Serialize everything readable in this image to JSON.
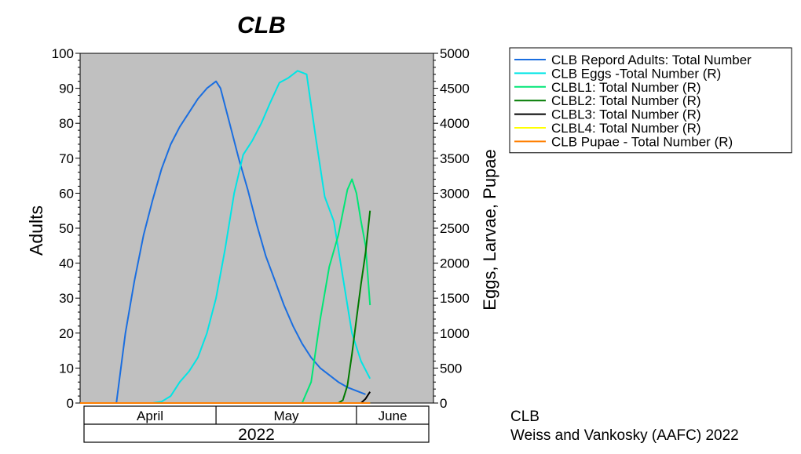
{
  "chart_data": {
    "type": "line",
    "title": "CLB",
    "ylabel_left": "Adults",
    "ylabel_right": "Eggs, Larvae, Pupae",
    "ylim_left": [
      0,
      100
    ],
    "ylim_right": [
      0,
      5000
    ],
    "yticks_left": [
      "0",
      "10",
      "20",
      "30",
      "40",
      "50",
      "60",
      "70",
      "80",
      "90",
      "100"
    ],
    "yticks_right": [
      "0",
      "500",
      "1000",
      "1500",
      "2000",
      "2500",
      "3000",
      "3500",
      "4000",
      "4500",
      "5000"
    ],
    "x_domain": [
      "2022-03-31",
      "2022-06-17"
    ],
    "month_labels": [
      {
        "label": "April",
        "start": "2022-03-31",
        "end": "2022-04-30"
      },
      {
        "label": "May",
        "start": "2022-04-30",
        "end": "2022-05-31"
      },
      {
        "label": "June",
        "start": "2022-05-31",
        "end": "2022-06-17"
      }
    ],
    "year_label": "2022",
    "grid": false,
    "legend_position": "right-top",
    "background": "#c0c0c0",
    "series": [
      {
        "name": "CLB  Repord Adults: Total Number",
        "axis": "left",
        "color": "#1a6ee0",
        "points": [
          [
            "2022-04-08",
            0
          ],
          [
            "2022-04-10",
            20
          ],
          [
            "2022-04-12",
            35
          ],
          [
            "2022-04-14",
            48
          ],
          [
            "2022-04-16",
            58
          ],
          [
            "2022-04-18",
            67
          ],
          [
            "2022-04-20",
            74
          ],
          [
            "2022-04-22",
            79
          ],
          [
            "2022-04-24",
            83
          ],
          [
            "2022-04-26",
            87
          ],
          [
            "2022-04-28",
            90
          ],
          [
            "2022-04-30",
            92
          ],
          [
            "2022-05-01",
            90
          ],
          [
            "2022-05-03",
            80
          ],
          [
            "2022-05-05",
            70
          ],
          [
            "2022-05-07",
            61
          ],
          [
            "2022-05-09",
            51
          ],
          [
            "2022-05-11",
            42
          ],
          [
            "2022-05-13",
            35
          ],
          [
            "2022-05-15",
            28
          ],
          [
            "2022-05-17",
            22
          ],
          [
            "2022-05-19",
            17
          ],
          [
            "2022-05-21",
            13
          ],
          [
            "2022-05-23",
            10
          ],
          [
            "2022-05-25",
            8
          ],
          [
            "2022-05-27",
            6
          ],
          [
            "2022-05-29",
            4.5
          ],
          [
            "2022-05-31",
            3.5
          ],
          [
            "2022-06-02",
            2.5
          ]
        ]
      },
      {
        "name": "CLB Eggs -Total Number (R)",
        "axis": "right",
        "color": "#00e5e5",
        "points": [
          [
            "2022-04-16",
            0
          ],
          [
            "2022-04-18",
            20
          ],
          [
            "2022-04-20",
            100
          ],
          [
            "2022-04-22",
            300
          ],
          [
            "2022-04-24",
            450
          ],
          [
            "2022-04-26",
            650
          ],
          [
            "2022-04-28",
            1000
          ],
          [
            "2022-04-30",
            1500
          ],
          [
            "2022-05-02",
            2200
          ],
          [
            "2022-05-04",
            3000
          ],
          [
            "2022-05-06",
            3550
          ],
          [
            "2022-05-08",
            3750
          ],
          [
            "2022-05-10",
            4000
          ],
          [
            "2022-05-12",
            4300
          ],
          [
            "2022-05-14",
            4580
          ],
          [
            "2022-05-16",
            4650
          ],
          [
            "2022-05-18",
            4750
          ],
          [
            "2022-05-20",
            4700
          ],
          [
            "2022-05-22",
            3800
          ],
          [
            "2022-05-24",
            2950
          ],
          [
            "2022-05-26",
            2600
          ],
          [
            "2022-05-28",
            1800
          ],
          [
            "2022-05-30",
            1000
          ],
          [
            "2022-06-01",
            600
          ],
          [
            "2022-06-03",
            350
          ]
        ]
      },
      {
        "name": "CLBL1: Total Number (R)",
        "axis": "right",
        "color": "#00e676",
        "points": [
          [
            "2022-05-19",
            0
          ],
          [
            "2022-05-21",
            300
          ],
          [
            "2022-05-23",
            1200
          ],
          [
            "2022-05-25",
            1950
          ],
          [
            "2022-05-27",
            2400
          ],
          [
            "2022-05-29",
            3050
          ],
          [
            "2022-05-30",
            3200
          ],
          [
            "2022-05-31",
            3000
          ],
          [
            "2022-06-01",
            2600
          ],
          [
            "2022-06-02",
            2250
          ],
          [
            "2022-06-03",
            1400
          ]
        ]
      },
      {
        "name": "CLBL2: Total Number (R)",
        "axis": "right",
        "color": "#007a00",
        "points": [
          [
            "2022-05-27",
            0
          ],
          [
            "2022-05-28",
            40
          ],
          [
            "2022-05-29",
            250
          ],
          [
            "2022-05-30",
            700
          ],
          [
            "2022-05-31",
            1200
          ],
          [
            "2022-06-01",
            1700
          ],
          [
            "2022-06-02",
            2150
          ],
          [
            "2022-06-03",
            2750
          ]
        ]
      },
      {
        "name": "CLBL3: Total Number (R)",
        "axis": "right",
        "color": "#000000",
        "points": [
          [
            "2022-06-01",
            0
          ],
          [
            "2022-06-02",
            60
          ],
          [
            "2022-06-03",
            160
          ]
        ]
      },
      {
        "name": "CLBL4: Total Number (R)",
        "axis": "right",
        "color": "#ffff00",
        "points": [
          [
            "2022-03-31",
            0
          ],
          [
            "2022-06-03",
            0
          ]
        ]
      },
      {
        "name": "CLB Pupae - Total Number (R)",
        "axis": "right",
        "color": "#ff7f00",
        "points": [
          [
            "2022-03-31",
            0
          ],
          [
            "2022-06-03",
            0
          ]
        ]
      }
    ]
  },
  "caption": {
    "line1": "CLB",
    "line2": "Weiss and Vankosky  (AAFC) 2022"
  }
}
